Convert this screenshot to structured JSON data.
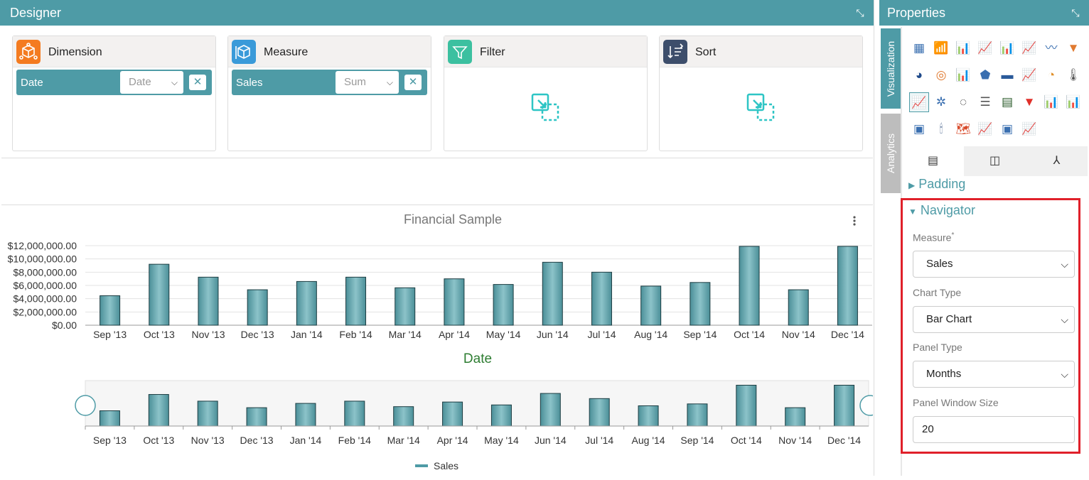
{
  "designer": {
    "title": "Designer",
    "wells": [
      {
        "title": "Dimension",
        "color": "#f47b20",
        "pill": {
          "label": "Date",
          "select": "Date"
        }
      },
      {
        "title": "Measure",
        "color": "#3a9ad9",
        "pill": {
          "label": "Sales",
          "select": "Sum"
        }
      },
      {
        "title": "Filter",
        "color": "#3cc0a0"
      },
      {
        "title": "Sort",
        "color": "#3d4e6b"
      }
    ]
  },
  "chart_data": {
    "type": "bar",
    "title": "Financial Sample",
    "xlabel": "Date",
    "categories": [
      "Sep '13",
      "Oct '13",
      "Nov '13",
      "Dec '13",
      "Jan '14",
      "Feb '14",
      "Mar '14",
      "Apr '14",
      "May '14",
      "Jun '14",
      "Jul '14",
      "Aug '14",
      "Sep '14",
      "Oct '14",
      "Nov '14",
      "Dec '14"
    ],
    "series": [
      {
        "name": "Sales",
        "values": [
          4450000,
          9200000,
          7250000,
          5350000,
          6600000,
          7250000,
          5650000,
          7000000,
          6150000,
          9500000,
          8000000,
          5900000,
          6450000,
          11900000,
          5350000,
          11900000
        ]
      }
    ],
    "y_ticks": [
      "$0.00",
      "$2,000,000.00",
      "$4,000,000.00",
      "$6,000,000.00",
      "$8,000,000.00",
      "$10,000,000.00",
      "$12,000,000.00"
    ],
    "ylim": [
      0,
      12000000
    ],
    "bar_color": "#5fa3ac",
    "navigator": {
      "categories": [
        "Sep '13",
        "Oct '13",
        "Nov '13",
        "Dec '13",
        "Jan '14",
        "Feb '14",
        "Mar '14",
        "Apr '14",
        "May '14",
        "Jun '14",
        "Jul '14",
        "Aug '14",
        "Sep '14",
        "Oct '14",
        "Nov '14",
        "Dec '14"
      ]
    },
    "legend": {
      "entry": "Sales",
      "placement": "bottom"
    }
  },
  "properties": {
    "title": "Properties",
    "vertical_tabs": [
      "Visualization",
      "Analytics"
    ],
    "sections": {
      "padding": "Padding",
      "navigator": "Navigator"
    },
    "fields": {
      "measure_label": "Measure",
      "measure_required": "*",
      "measure_value": "Sales",
      "chart_type_label": "Chart Type",
      "chart_type_value": "Bar Chart",
      "panel_type_label": "Panel Type",
      "panel_type_value": "Months",
      "panel_window_label": "Panel Window Size",
      "panel_window_value": "20"
    },
    "highlight_color": "#e0202a"
  }
}
